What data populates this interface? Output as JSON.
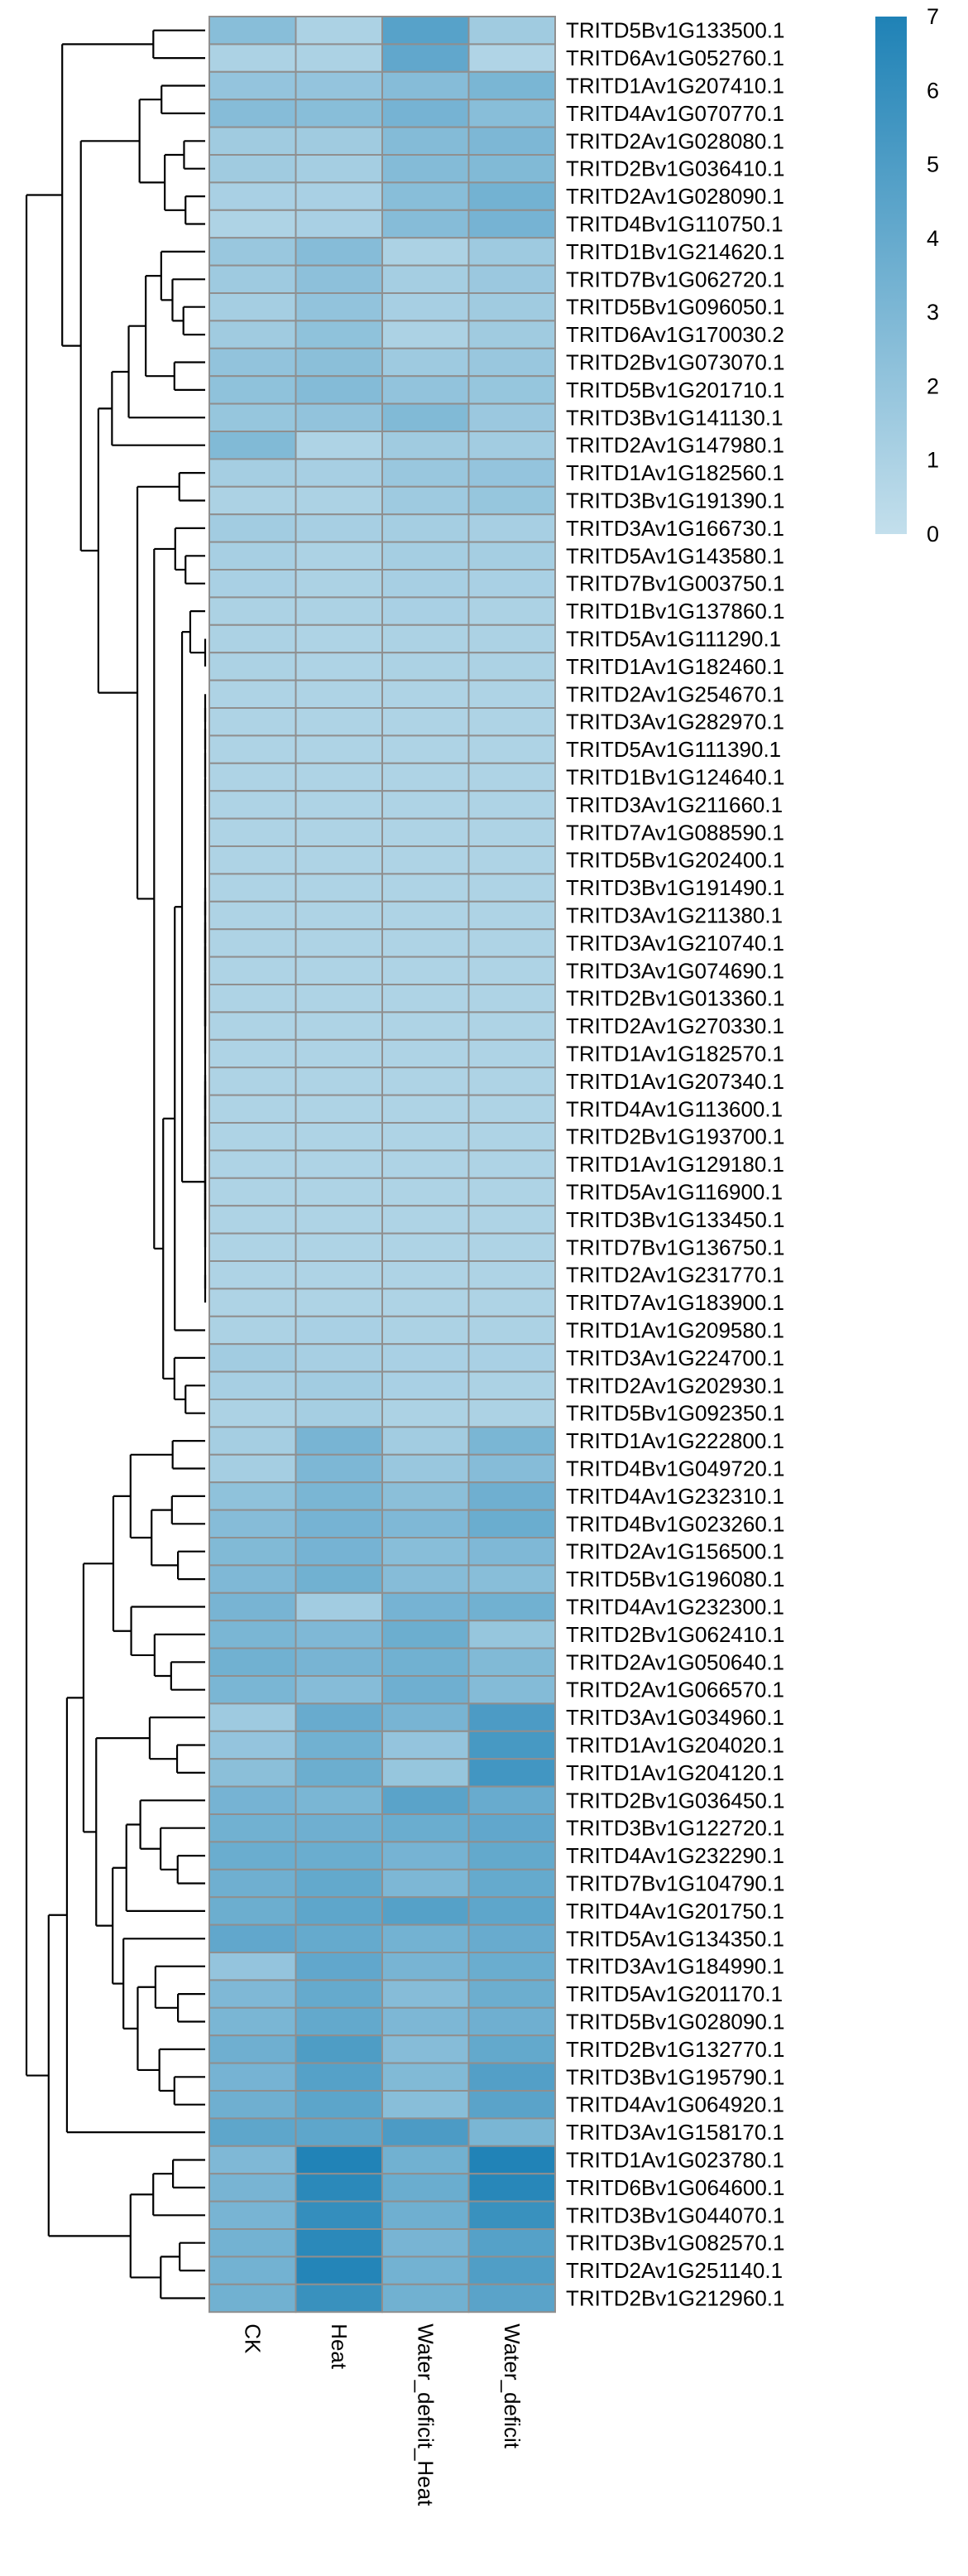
{
  "chart_data": {
    "type": "heatmap",
    "columns": [
      "CK",
      "Heat",
      "Water_deficit_Heat",
      "Water_deficit"
    ],
    "rows": [
      "TRITD5Bv1G133500.1",
      "TRITD6Av1G052760.1",
      "TRITD1Av1G207410.1",
      "TRITD4Av1G070770.1",
      "TRITD2Av1G028080.1",
      "TRITD2Bv1G036410.1",
      "TRITD2Av1G028090.1",
      "TRITD4Bv1G110750.1",
      "TRITD1Bv1G214620.1",
      "TRITD7Bv1G062720.1",
      "TRITD5Bv1G096050.1",
      "TRITD6Av1G170030.2",
      "TRITD2Bv1G073070.1",
      "TRITD5Bv1G201710.1",
      "TRITD3Bv1G141130.1",
      "TRITD2Av1G147980.1",
      "TRITD1Av1G182560.1",
      "TRITD3Bv1G191390.1",
      "TRITD3Av1G166730.1",
      "TRITD5Av1G143580.1",
      "TRITD7Bv1G003750.1",
      "TRITD1Bv1G137860.1",
      "TRITD5Av1G111290.1",
      "TRITD1Av1G182460.1",
      "TRITD2Av1G254670.1",
      "TRITD3Av1G282970.1",
      "TRITD5Av1G111390.1",
      "TRITD1Bv1G124640.1",
      "TRITD3Av1G211660.1",
      "TRITD7Av1G088590.1",
      "TRITD5Bv1G202400.1",
      "TRITD3Bv1G191490.1",
      "TRITD3Av1G211380.1",
      "TRITD3Av1G210740.1",
      "TRITD3Av1G074690.1",
      "TRITD2Bv1G013360.1",
      "TRITD2Av1G270330.1",
      "TRITD1Av1G182570.1",
      "TRITD1Av1G207340.1",
      "TRITD4Av1G113600.1",
      "TRITD2Bv1G193700.1",
      "TRITD1Av1G129180.1",
      "TRITD5Av1G116900.1",
      "TRITD3Bv1G133450.1",
      "TRITD7Bv1G136750.1",
      "TRITD2Av1G231770.1",
      "TRITD7Av1G183900.1",
      "TRITD1Av1G209580.1",
      "TRITD3Av1G224700.1",
      "TRITD2Av1G202930.1",
      "TRITD5Bv1G092350.1",
      "TRITD1Av1G222800.1",
      "TRITD4Bv1G049720.1",
      "TRITD4Av1G232310.1",
      "TRITD4Bv1G023260.1",
      "TRITD2Av1G156500.1",
      "TRITD5Bv1G196080.1",
      "TRITD4Av1G232300.1",
      "TRITD2Bv1G062410.1",
      "TRITD2Av1G050640.1",
      "TRITD2Av1G066570.1",
      "TRITD3Av1G034960.1",
      "TRITD1Av1G204020.1",
      "TRITD1Av1G204120.1",
      "TRITD2Bv1G036450.1",
      "TRITD3Bv1G122720.1",
      "TRITD4Av1G232290.1",
      "TRITD7Bv1G104790.1",
      "TRITD4Av1G201750.1",
      "TRITD5Av1G134350.1",
      "TRITD3Av1G184990.1",
      "TRITD5Av1G201170.1",
      "TRITD5Bv1G028090.1",
      "TRITD2Bv1G132770.1",
      "TRITD3Bv1G195790.1",
      "TRITD4Av1G064920.1",
      "TRITD3Av1G158170.1",
      "TRITD1Av1G023780.1",
      "TRITD6Bv1G064600.1",
      "TRITD3Bv1G044070.1",
      "TRITD3Bv1G082570.1",
      "TRITD2Av1G251140.1",
      "TRITD2Bv1G212960.1"
    ],
    "values": [
      [
        2.5,
        1.0,
        4.6,
        1.5
      ],
      [
        1.0,
        1.0,
        4.2,
        0.8
      ],
      [
        2.0,
        2.0,
        2.6,
        3.1
      ],
      [
        2.6,
        2.5,
        3.3,
        2.5
      ],
      [
        1.5,
        1.5,
        2.7,
        3.0
      ],
      [
        1.5,
        1.3,
        2.7,
        2.8
      ],
      [
        1.1,
        1.1,
        2.5,
        3.4
      ],
      [
        0.9,
        1.1,
        2.6,
        3.3
      ],
      [
        1.8,
        2.6,
        1.0,
        1.6
      ],
      [
        1.6,
        2.3,
        1.3,
        1.7
      ],
      [
        1.3,
        2.1,
        1.2,
        1.5
      ],
      [
        1.5,
        2.2,
        1.0,
        1.5
      ],
      [
        2.1,
        2.4,
        1.6,
        1.8
      ],
      [
        2.2,
        2.7,
        2.1,
        1.9
      ],
      [
        1.9,
        2.1,
        2.8,
        1.7
      ],
      [
        2.8,
        0.9,
        1.5,
        1.4
      ],
      [
        1.3,
        1.2,
        1.8,
        2.0
      ],
      [
        1.0,
        1.0,
        1.6,
        1.9
      ],
      [
        1.4,
        1.2,
        1.3,
        1.2
      ],
      [
        1.2,
        1.0,
        1.3,
        1.3
      ],
      [
        1.1,
        1.0,
        1.2,
        1.1
      ],
      [
        1.0,
        1.0,
        1.1,
        1.0
      ],
      [
        1.0,
        0.9,
        1.0,
        1.0
      ],
      [
        1.0,
        0.9,
        1.0,
        1.0
      ],
      [
        0.9,
        0.9,
        0.9,
        0.9
      ],
      [
        0.9,
        0.9,
        0.9,
        0.9
      ],
      [
        0.9,
        0.9,
        0.9,
        0.9
      ],
      [
        0.9,
        0.9,
        0.9,
        0.9
      ],
      [
        0.9,
        0.9,
        0.9,
        0.9
      ],
      [
        0.9,
        0.9,
        0.9,
        0.9
      ],
      [
        0.9,
        0.9,
        0.9,
        0.9
      ],
      [
        0.9,
        0.9,
        0.9,
        0.9
      ],
      [
        0.9,
        0.9,
        0.9,
        0.9
      ],
      [
        0.9,
        0.9,
        0.9,
        0.9
      ],
      [
        0.9,
        0.9,
        0.9,
        0.9
      ],
      [
        0.9,
        0.9,
        0.9,
        0.9
      ],
      [
        0.9,
        0.9,
        0.9,
        0.9
      ],
      [
        0.9,
        0.9,
        0.9,
        0.9
      ],
      [
        0.9,
        0.9,
        0.9,
        0.9
      ],
      [
        0.9,
        0.9,
        0.9,
        0.9
      ],
      [
        0.9,
        0.9,
        0.9,
        0.9
      ],
      [
        0.9,
        0.9,
        0.9,
        0.9
      ],
      [
        0.9,
        0.9,
        0.9,
        0.9
      ],
      [
        0.9,
        0.9,
        0.9,
        0.9
      ],
      [
        0.9,
        0.9,
        0.9,
        0.9
      ],
      [
        0.9,
        0.9,
        0.9,
        0.9
      ],
      [
        0.9,
        0.9,
        0.9,
        0.9
      ],
      [
        1.0,
        1.1,
        1.0,
        1.0
      ],
      [
        1.4,
        1.2,
        1.1,
        1.1
      ],
      [
        1.2,
        1.4,
        1.1,
        1.0
      ],
      [
        1.0,
        1.3,
        1.0,
        1.0
      ],
      [
        1.3,
        3.2,
        1.4,
        3.1
      ],
      [
        1.3,
        3.0,
        1.8,
        2.6
      ],
      [
        2.2,
        3.1,
        2.4,
        3.6
      ],
      [
        2.6,
        3.3,
        2.9,
        3.8
      ],
      [
        2.8,
        3.3,
        2.5,
        2.9
      ],
      [
        2.9,
        3.5,
        2.6,
        2.5
      ],
      [
        3.2,
        1.4,
        3.3,
        3.5
      ],
      [
        3.1,
        2.9,
        3.7,
        1.9
      ],
      [
        3.5,
        3.2,
        3.5,
        2.8
      ],
      [
        3.1,
        2.6,
        3.6,
        2.7
      ],
      [
        1.6,
        3.9,
        3.2,
        5.1
      ],
      [
        2.0,
        3.5,
        2.0,
        5.3
      ],
      [
        2.4,
        3.7,
        1.9,
        5.5
      ],
      [
        3.3,
        3.1,
        4.5,
        3.9
      ],
      [
        3.5,
        3.6,
        3.8,
        4.2
      ],
      [
        3.8,
        3.8,
        3.3,
        4.1
      ],
      [
        3.6,
        4.1,
        3.0,
        4.0
      ],
      [
        3.7,
        4.3,
        4.7,
        4.3
      ],
      [
        4.2,
        4.0,
        3.4,
        3.9
      ],
      [
        2.0,
        4.2,
        3.2,
        3.8
      ],
      [
        2.9,
        4.0,
        2.6,
        3.7
      ],
      [
        3.1,
        4.1,
        3.0,
        3.6
      ],
      [
        3.6,
        5.0,
        2.6,
        4.1
      ],
      [
        3.3,
        4.7,
        2.8,
        4.8
      ],
      [
        3.6,
        4.4,
        2.5,
        4.5
      ],
      [
        4.3,
        4.3,
        5.1,
        3.1
      ],
      [
        2.9,
        6.9,
        3.5,
        6.9
      ],
      [
        3.2,
        6.5,
        3.8,
        6.6
      ],
      [
        3.2,
        6.1,
        3.6,
        5.9
      ],
      [
        3.4,
        6.5,
        3.2,
        4.7
      ],
      [
        3.4,
        6.8,
        3.4,
        4.9
      ],
      [
        3.5,
        5.9,
        3.5,
        4.5
      ]
    ],
    "color_scale": {
      "min": 0,
      "max": 7,
      "ticks": [
        "0",
        "1",
        "2",
        "3",
        "4",
        "5",
        "6",
        "7"
      ],
      "low_color": "#c3dfec",
      "high_color": "#1f82b6"
    },
    "cell_border_color": "#8f8f8f",
    "dendrogram": "rows",
    "legend_position": "top-right"
  }
}
